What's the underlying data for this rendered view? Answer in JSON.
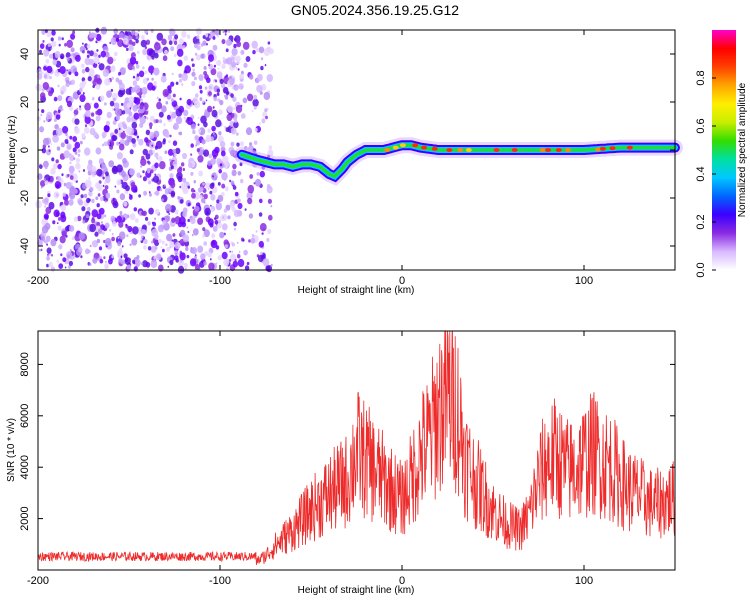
{
  "title": "GN05.2024.356.19.25.G12",
  "chart_data": [
    {
      "type": "heatmap",
      "xlabel": "Height of straight line (km)",
      "ylabel": "Frequency (Hz)",
      "xlim": [
        -200,
        150
      ],
      "ylim": [
        -50,
        50
      ],
      "xticks": [
        -200,
        -100,
        0,
        100
      ],
      "yticks": [
        -40,
        -20,
        0,
        20,
        40
      ],
      "colorbar": {
        "label": "Normalized spectral amplitude",
        "range": [
          0,
          1
        ],
        "ticks": [
          "0.0",
          "0.2",
          "0.4",
          "0.6",
          "0.8"
        ],
        "colors": [
          "#ffffff",
          "#d8b8ff",
          "#8a2be2",
          "#3a00ff",
          "#0066ff",
          "#00c8ff",
          "#00e0a0",
          "#33dd00",
          "#c8ee00",
          "#ffee00",
          "#ffa500",
          "#ff4000",
          "#ff0000",
          "#ff00cc"
        ]
      },
      "noise_region_x": [
        -200,
        -88
      ],
      "ridge": {
        "x": [
          -88,
          -80,
          -75,
          -70,
          -65,
          -60,
          -55,
          -50,
          -45,
          -40,
          -37,
          -33,
          -30,
          -25,
          -20,
          -15,
          -10,
          -5,
          0,
          5,
          10,
          20,
          40,
          60,
          80,
          100,
          120,
          150
        ],
        "y": [
          -2,
          -4,
          -5,
          -6,
          -6,
          -7,
          -6,
          -6,
          -7,
          -10,
          -11,
          -8,
          -5,
          -2,
          0,
          0,
          0,
          1,
          2,
          2,
          1,
          0,
          0,
          0,
          0,
          0,
          1,
          1
        ]
      }
    },
    {
      "type": "line",
      "xlabel": "Height of straight line (km)",
      "ylabel": "SNR (10 * v/v)",
      "xlim": [
        -200,
        150
      ],
      "ylim": [
        0,
        9300
      ],
      "xticks": [
        -200,
        -100,
        0,
        100
      ],
      "yticks": [
        2000,
        4000,
        6000,
        8000
      ],
      "color": "#ee2b2b",
      "envelope": {
        "x": [
          -200,
          -100,
          -80,
          -75,
          -70,
          -60,
          -50,
          -40,
          -30,
          -25,
          -20,
          -15,
          -10,
          -5,
          0,
          5,
          10,
          15,
          20,
          25,
          30,
          35,
          40,
          45,
          50,
          55,
          60,
          65,
          70,
          75,
          80,
          85,
          90,
          95,
          100,
          105,
          110,
          115,
          120,
          125,
          130,
          135,
          140,
          145,
          150
        ],
        "y": [
          350,
          400,
          450,
          700,
          1200,
          2000,
          3000,
          3800,
          4500,
          6000,
          5500,
          5000,
          4500,
          4000,
          3500,
          4500,
          5800,
          6500,
          8000,
          8800,
          8300,
          5500,
          4500,
          3800,
          3000,
          2500,
          2200,
          2000,
          2800,
          4500,
          5500,
          5700,
          5000,
          5000,
          5500,
          5900,
          5500,
          5200,
          4500,
          4000,
          3800,
          3400,
          3300,
          3500,
          3600
        ]
      }
    }
  ]
}
